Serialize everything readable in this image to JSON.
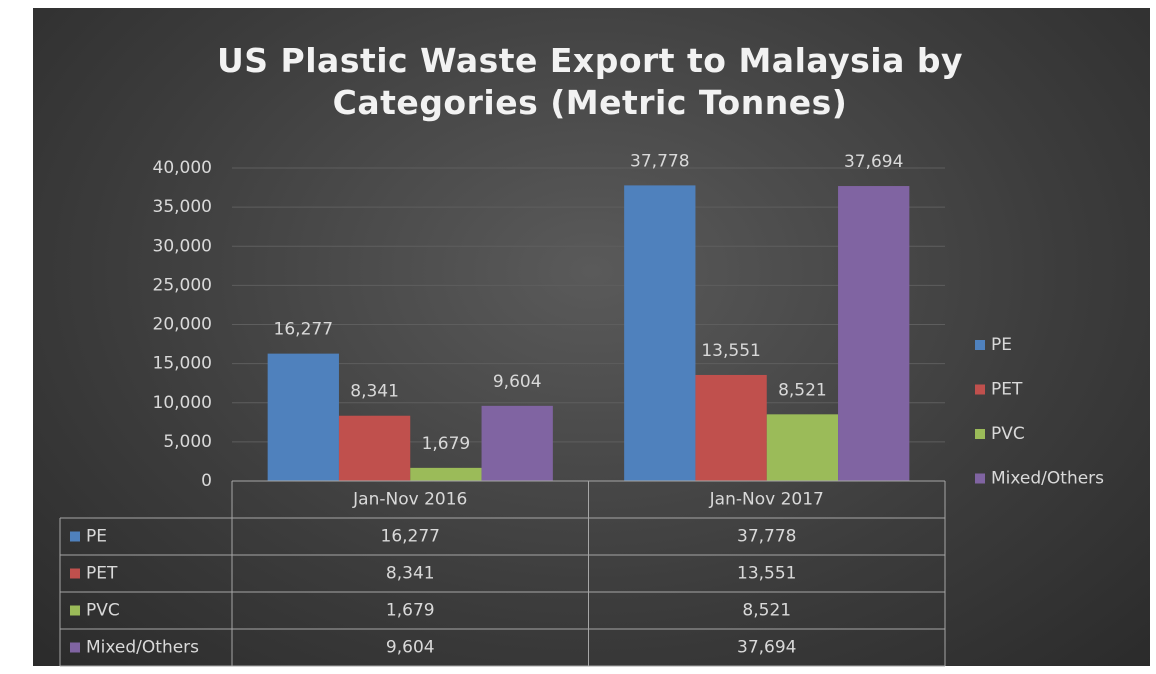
{
  "chart_data": {
    "type": "bar",
    "title": "US Plastic Waste Export to Malaysia by Categories (Metric Tonnes)",
    "categories": [
      "Jan-Nov 2016",
      "Jan-Nov 2017"
    ],
    "series": [
      {
        "name": "PE",
        "color": "#4f81bd",
        "values": [
          16277,
          37778
        ],
        "value_labels": [
          "16,277",
          "37,778"
        ]
      },
      {
        "name": "PET",
        "color": "#c0504d",
        "values": [
          8341,
          13551
        ],
        "value_labels": [
          "8,341",
          "13,551"
        ]
      },
      {
        "name": "PVC",
        "color": "#9bbb59",
        "values": [
          1679,
          8521
        ],
        "value_labels": [
          "1,679",
          "8,521"
        ]
      },
      {
        "name": "Mixed/Others",
        "color": "#8064a2",
        "values": [
          9604,
          37694
        ],
        "value_labels": [
          "9,604",
          "37,694"
        ]
      }
    ],
    "ylim": [
      0,
      40000
    ],
    "yticks": [
      0,
      {
        "value": 5000,
        "label": "5,000"
      },
      {
        "value": 10000,
        "label": "10,000"
      },
      {
        "value": 15000,
        "label": "15,000"
      },
      {
        "value": 20000,
        "label": "20,000"
      },
      {
        "value": 25000,
        "label": "25,000"
      },
      {
        "value": 30000,
        "label": "30,000"
      },
      {
        "value": 35000,
        "label": "35,000"
      },
      {
        "value": 40000,
        "label": "40,000"
      }
    ],
    "grid": true,
    "legend": "right",
    "data_table": true
  }
}
